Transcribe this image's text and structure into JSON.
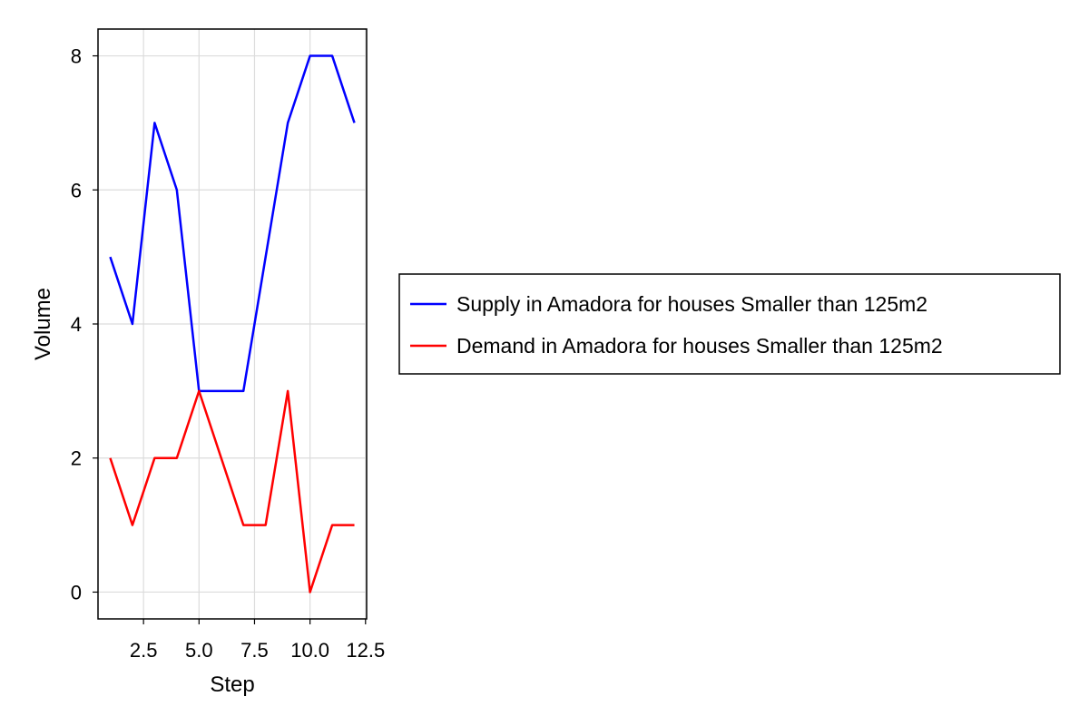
{
  "chart_data": {
    "type": "line",
    "title": "",
    "xlabel": "Step",
    "ylabel": "Volume",
    "x": [
      1,
      2,
      3,
      4,
      5,
      6,
      7,
      8,
      9,
      10,
      11,
      12
    ],
    "xlim": [
      0.45,
      12.55
    ],
    "ylim": [
      -0.4,
      8.4
    ],
    "x_ticks": [
      2.5,
      5.0,
      7.5,
      10.0,
      12.5
    ],
    "x_tick_labels": [
      "2.5",
      "5.0",
      "7.5",
      "10.0",
      "12.5"
    ],
    "y_ticks": [
      0,
      2,
      4,
      6,
      8
    ],
    "y_tick_labels": [
      "0",
      "2",
      "4",
      "6",
      "8"
    ],
    "grid": true,
    "legend_position": "right",
    "series": [
      {
        "name": "Supply in Amadora for houses Smaller than 125m2",
        "color": "#0000ff",
        "values": [
          5,
          4,
          7,
          6,
          3,
          3,
          3,
          5,
          7,
          8,
          8,
          7
        ]
      },
      {
        "name": "Demand in Amadora for houses Smaller than 125m2",
        "color": "#ff0000",
        "values": [
          2,
          1,
          2,
          2,
          3,
          2,
          1,
          1,
          3,
          0,
          1,
          1
        ]
      }
    ]
  }
}
